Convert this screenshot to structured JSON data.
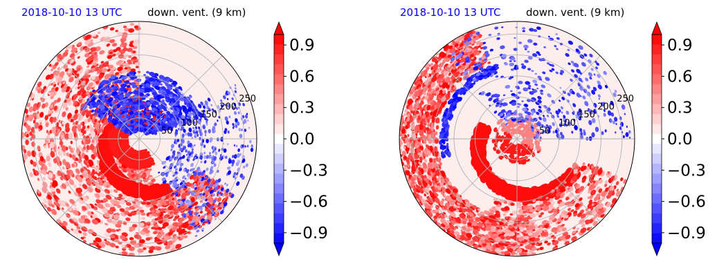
{
  "palette": {
    "title_time_color": "#0000ff",
    "title_var_color": "#000000",
    "positive_color": "#ff0000",
    "negative_color": "#0000ff",
    "neutral_color": "#ffffff",
    "grid_color": "#b0b0b0"
  },
  "chart_data": [
    {
      "type": "heatmap",
      "projection": "polar",
      "title_left": "2018-10-10 13 UTC",
      "title_right": "down. vent. (9 km)",
      "radial_ticks": [
        "50",
        "100",
        "150",
        "200",
        "250"
      ],
      "radial_tick_values": [
        50,
        100,
        150,
        200,
        250
      ],
      "r_max": 280,
      "angular_gridlines_deg": [
        0,
        45,
        90,
        135,
        180,
        225,
        270,
        315
      ],
      "grid": true,
      "colorbar": {
        "ticks": [
          "0.9",
          "0.6",
          "0.3",
          "0.0",
          "−0.3",
          "−0.6",
          "−0.9"
        ],
        "tick_values": [
          0.9,
          0.6,
          0.3,
          0.0,
          -0.3,
          -0.6,
          -0.9
        ],
        "vmin": -1.0,
        "vmax": 1.0,
        "levels": 21,
        "extend": "both",
        "cmap": "bwr"
      },
      "pattern": "spiral-rainband-west-south-positive, east-north-negative"
    },
    {
      "type": "heatmap",
      "projection": "polar",
      "title_left": "2018-10-10 13 UTC",
      "title_right": "down. vent. (9 km)",
      "radial_ticks": [
        "50",
        "100",
        "150",
        "200",
        "250"
      ],
      "radial_tick_values": [
        50,
        100,
        150,
        200,
        250
      ],
      "r_max": 280,
      "angular_gridlines_deg": [
        0,
        45,
        90,
        135,
        180,
        225,
        270,
        315
      ],
      "grid": true,
      "colorbar": {
        "ticks": [
          "0.9",
          "0.6",
          "0.3",
          "0.0",
          "−0.3",
          "−0.6",
          "−0.9"
        ],
        "tick_values": [
          0.9,
          0.6,
          0.3,
          0.0,
          -0.3,
          -0.6,
          -0.9
        ],
        "vmin": -1.0,
        "vmax": 1.0,
        "levels": 21,
        "extend": "both",
        "cmap": "bwr"
      },
      "pattern": "outer spiral rainband positive, weak scattered negative north-east"
    }
  ]
}
